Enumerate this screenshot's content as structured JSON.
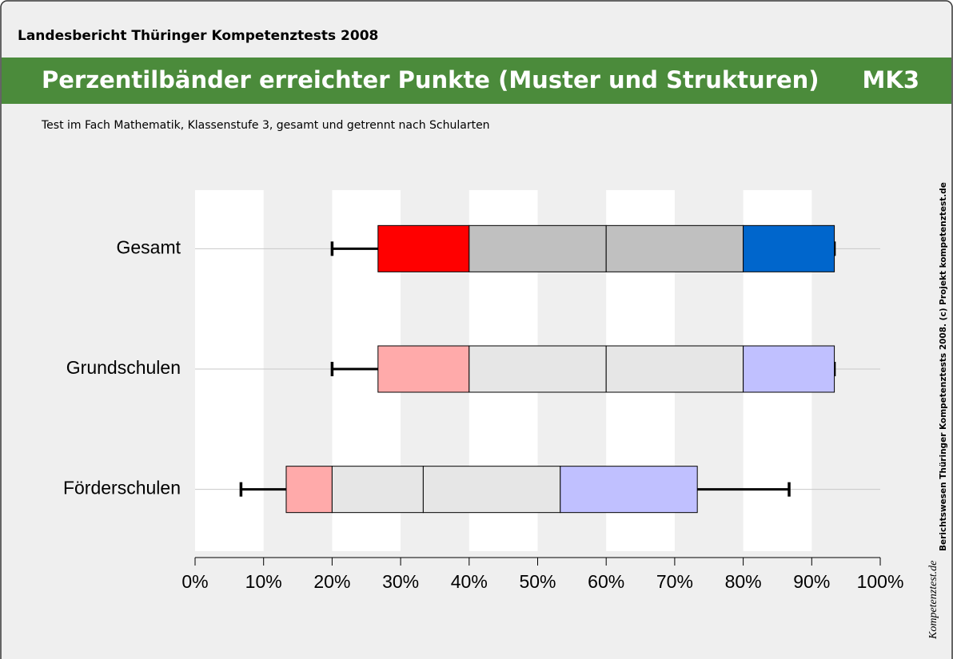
{
  "header": {
    "title": "Landesbericht Thüringer Kompetenztests 2008"
  },
  "chart_data": {
    "type": "percentile_band",
    "title": "Perzentilbänder erreichter Punkte (Muster und Strukturen)",
    "code": "MK3",
    "subtitle": "Test im Fach Mathematik, Klassenstufe 3, gesamt und getrennt nach Schularten",
    "categories": [
      "Gesamt",
      "Grundschulen",
      "Förderschulen"
    ],
    "values": [
      [
        20,
        26.7,
        40,
        60,
        80,
        93.3,
        93.3
      ],
      [
        20,
        26.7,
        40,
        60,
        80,
        93.3,
        93.3
      ],
      [
        6.7,
        13.3,
        20,
        33.3,
        53.3,
        73.3,
        86.7
      ]
    ],
    "colors": [
      [
        "#ff0000",
        "#c0c0c0",
        "#c0c0c0",
        "#0066cc"
      ],
      [
        "#ffaaaa",
        "#e6e6e6",
        "#e6e6e6",
        "#c0c0ff"
      ],
      [
        "#ffaaaa",
        "#e6e6e6",
        "#e6e6e6",
        "#c0c0ff"
      ]
    ],
    "xlim": [
      0,
      100
    ],
    "xticks": [
      {
        "value": 0,
        "label": "0%"
      },
      {
        "value": 10,
        "label": "10%"
      },
      {
        "value": 20,
        "label": "20%"
      },
      {
        "value": 30,
        "label": "30%"
      },
      {
        "value": 40,
        "label": "40%"
      },
      {
        "value": 50,
        "label": "50%"
      },
      {
        "value": 60,
        "label": "60%"
      },
      {
        "value": 70,
        "label": "70%"
      },
      {
        "value": 80,
        "label": "80%"
      },
      {
        "value": 90,
        "label": "90%"
      },
      {
        "value": 100,
        "label": "100%"
      }
    ]
  },
  "footer": {
    "copyright": "Berichtswesen Thüringer Kompetenztests 2008. (c) Projekt kompetenztest.de",
    "logo": "Kompetenztest.de"
  }
}
